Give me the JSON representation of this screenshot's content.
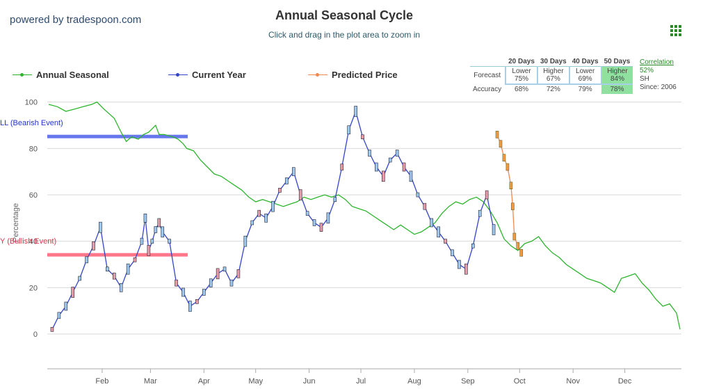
{
  "brand": "powered by tradespoon.com",
  "title": "Annual Seasonal Cycle",
  "subtitle": "Click and drag in the plot area to zoom in",
  "legend": [
    {
      "label": "Annual Seasonal",
      "color": "#2db52d"
    },
    {
      "label": "Current Year",
      "color": "#3344cc"
    },
    {
      "label": "Predicted Price",
      "color": "#f08850"
    }
  ],
  "forecast_table": {
    "headers": [
      "20 Days",
      "30 Days",
      "40 Days",
      "50 Days"
    ],
    "forecast_label": "Forecast",
    "accuracy_label": "Accuracy",
    "forecast": [
      {
        "dir": "Lower",
        "pct": "75%"
      },
      {
        "dir": "Higher",
        "pct": "67%"
      },
      {
        "dir": "Lower",
        "pct": "69%"
      },
      {
        "dir": "Higher",
        "pct": "84%"
      }
    ],
    "accuracy": [
      "68%",
      "72%",
      "79%",
      "78%"
    ],
    "highlight_color": "#90e0a0"
  },
  "correlation": {
    "link": "Correlation",
    "value": "52%",
    "symbol": "SH",
    "since": "Since: 2006"
  },
  "events": {
    "bearish": {
      "label": "LL (Bearish Event)",
      "value": 85,
      "color": "#6677ee"
    },
    "bullish": {
      "label": "Y (Bullish Event)",
      "value": 34,
      "color": "#ff7788"
    }
  },
  "chart_data": {
    "type": "line",
    "ylabel": "Percentage",
    "ylim": [
      -15,
      102
    ],
    "y_ticks": [
      0,
      20,
      40,
      60,
      80,
      100
    ],
    "x_range": [
      0,
      366
    ],
    "x_ticks": [
      {
        "label": "Feb",
        "day": 31
      },
      {
        "label": "Mar",
        "day": 59
      },
      {
        "label": "Apr",
        "day": 90
      },
      {
        "label": "May",
        "day": 120
      },
      {
        "label": "Jun",
        "day": 151
      },
      {
        "label": "Jul",
        "day": 181
      },
      {
        "label": "Aug",
        "day": 212
      },
      {
        "label": "Sep",
        "day": 243
      },
      {
        "label": "Oct",
        "day": 273
      },
      {
        "label": "Nov",
        "day": 304
      },
      {
        "label": "Dec",
        "day": 334
      }
    ],
    "series": [
      {
        "name": "Annual Seasonal",
        "color": "#2db52d",
        "x": [
          0,
          5,
          10,
          15,
          20,
          25,
          28,
          32,
          38,
          42,
          45,
          48,
          52,
          55,
          58,
          62,
          64,
          67,
          72,
          75,
          78,
          80,
          84,
          88,
          92,
          96,
          100,
          104,
          108,
          112,
          116,
          120,
          124,
          128,
          132,
          136,
          140,
          144,
          148,
          152,
          156,
          160,
          164,
          168,
          172,
          176,
          180,
          184,
          188,
          192,
          196,
          200,
          204,
          208,
          212,
          216,
          220,
          224,
          228,
          232,
          236,
          240,
          244,
          248,
          252,
          256,
          260,
          264,
          268,
          272,
          276,
          280,
          284,
          288,
          292,
          296,
          300,
          304,
          308,
          312,
          316,
          320,
          324,
          328,
          332,
          336,
          340,
          344,
          348,
          352,
          356,
          360,
          364,
          366
        ],
        "values": [
          99,
          98,
          96,
          97,
          98,
          99,
          100,
          97,
          93,
          87,
          83,
          85,
          84,
          86,
          87,
          90,
          86,
          86,
          85,
          84,
          82,
          80,
          79,
          75,
          72,
          69,
          68,
          66,
          64,
          62,
          59,
          57,
          58,
          57,
          56,
          55,
          56,
          57,
          59,
          58,
          59,
          60,
          59,
          60,
          58,
          55,
          54,
          53,
          51,
          49,
          47,
          45,
          47,
          45,
          43,
          44,
          46,
          48,
          52,
          55,
          57,
          56,
          58,
          59,
          57,
          53,
          48,
          41,
          38,
          36,
          39,
          40,
          42,
          38,
          35,
          33,
          30,
          28,
          26,
          24,
          23,
          22,
          20,
          18,
          24,
          25,
          26,
          22,
          19,
          15,
          12,
          13,
          9,
          2
        ]
      },
      {
        "name": "Current Year",
        "color": "#3344cc",
        "x": [
          2,
          6,
          10,
          14,
          18,
          22,
          26,
          30,
          34,
          38,
          42,
          46,
          50,
          54,
          56,
          58,
          60,
          62,
          64,
          66,
          70,
          74,
          78,
          82,
          86,
          90,
          94,
          98,
          102,
          106,
          110,
          114,
          118,
          122,
          126,
          130,
          134,
          138,
          142,
          146,
          150,
          154,
          158,
          162,
          166,
          170,
          174,
          178,
          182,
          186,
          190,
          194,
          198,
          202,
          206,
          210,
          214,
          218,
          222,
          226,
          230,
          234,
          238,
          242,
          246,
          250,
          254,
          258
        ],
        "values": [
          2,
          8,
          12,
          18,
          24,
          32,
          38,
          46,
          28,
          25,
          20,
          28,
          32,
          40,
          50,
          36,
          40,
          45,
          48,
          44,
          40,
          22,
          18,
          12,
          14,
          18,
          22,
          26,
          28,
          22,
          26,
          40,
          48,
          52,
          50,
          55,
          62,
          66,
          70,
          60,
          52,
          48,
          46,
          50,
          58,
          72,
          88,
          96,
          85,
          78,
          72,
          68,
          75,
          78,
          72,
          68,
          60,
          55,
          48,
          44,
          40,
          35,
          30,
          28,
          38,
          52,
          60,
          45
        ]
      },
      {
        "name": "Predicted Price",
        "color": "#f08850",
        "x": [
          260,
          262,
          264,
          266,
          268,
          269,
          270,
          272,
          274
        ],
        "values": [
          86,
          82,
          76,
          72,
          64,
          55,
          42,
          38,
          35
        ]
      }
    ]
  }
}
